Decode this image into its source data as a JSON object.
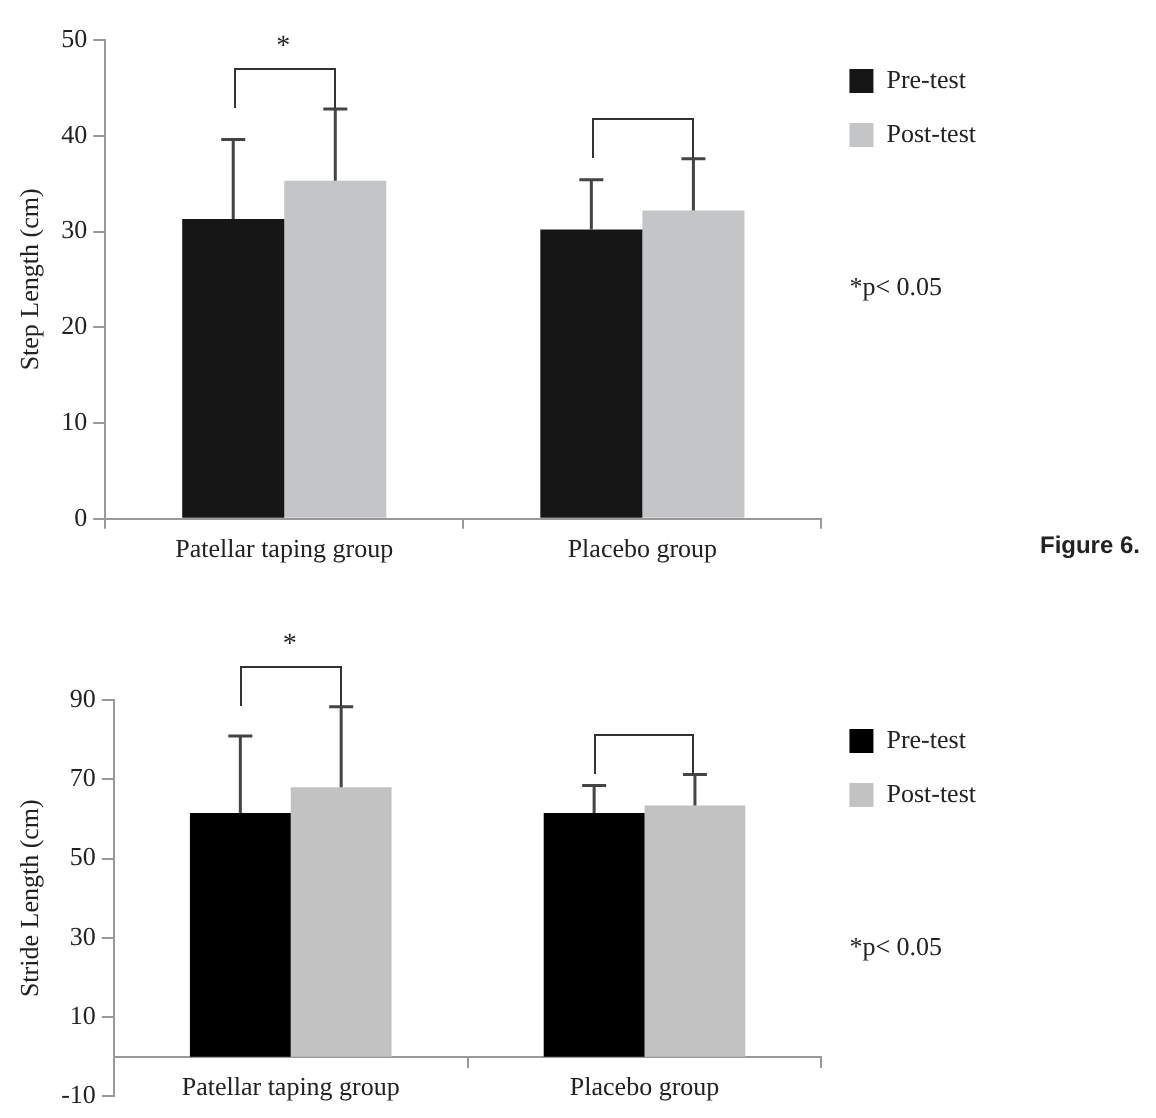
{
  "chart_data": [
    {
      "type": "bar",
      "ylabel": "Step Length (cm)",
      "categories": [
        "Patellar taping group",
        "Placebo group"
      ],
      "series": [
        {
          "name": "Pre-test",
          "color": "#161616",
          "values": [
            31.3,
            30.2
          ],
          "errors": [
            8.3,
            5.2
          ]
        },
        {
          "name": "Post-test",
          "color": "#c4c5c7",
          "values": [
            35.3,
            32.2
          ],
          "errors": [
            7.5,
            5.4
          ]
        }
      ],
      "ylim": [
        0,
        50
      ],
      "yticks": [
        0,
        10,
        20,
        30,
        40,
        50
      ],
      "grid": false,
      "legend": "right",
      "annotations": [
        "*",
        "*p< 0.05",
        "Figure 6."
      ]
    },
    {
      "type": "bar",
      "ylabel": "Stride Length (cm)",
      "categories": [
        "Patellar taping group",
        "Placebo group"
      ],
      "series": [
        {
          "name": "Pre-test",
          "color": "#000000",
          "values": [
            61.5,
            61.5
          ],
          "errors": [
            19.4,
            6.9
          ]
        },
        {
          "name": "Post-test",
          "color": "#c2c2c2",
          "values": [
            68.0,
            63.4
          ],
          "errors": [
            20.3,
            7.8
          ]
        }
      ],
      "ylim": [
        -10,
        90
      ],
      "yticks": [
        -10,
        10,
        30,
        50,
        70,
        90
      ],
      "grid": false,
      "legend": "right",
      "annotations": [
        "*",
        "*p< 0.05"
      ]
    }
  ]
}
